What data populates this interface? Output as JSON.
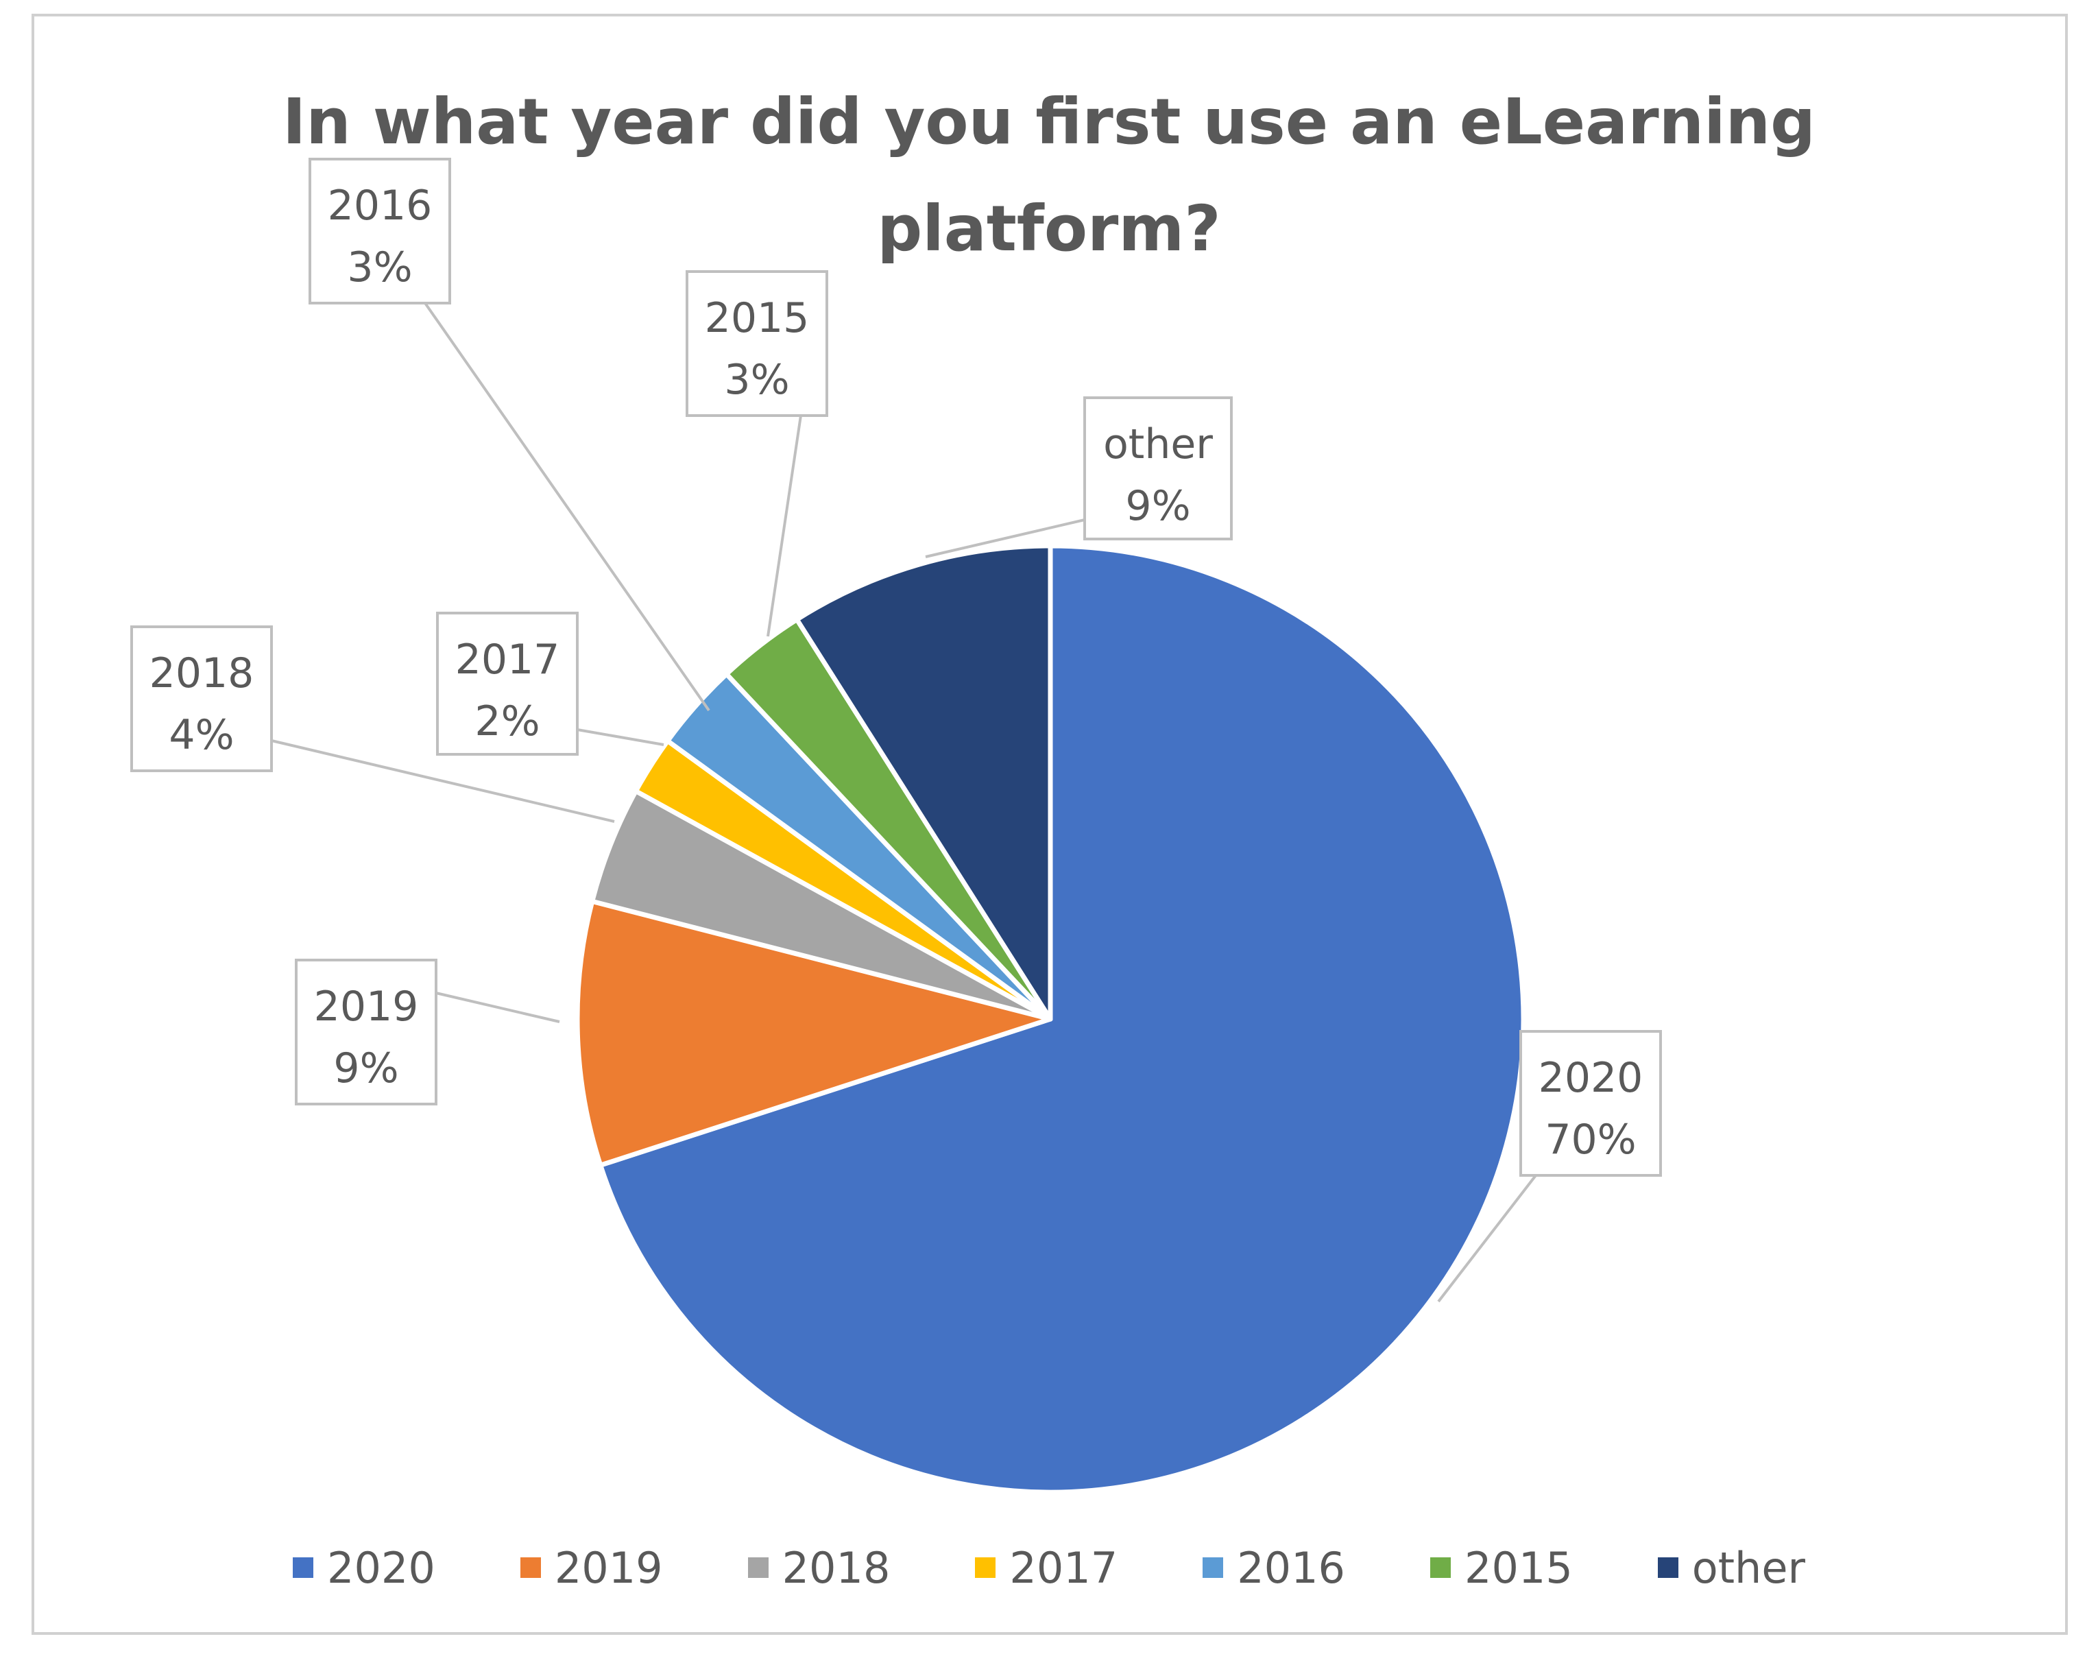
{
  "chart_data": {
    "type": "pie",
    "title": "In what year did you first use an eLearning\nplatform?",
    "categories": [
      "2020",
      "2019",
      "2018",
      "2017",
      "2016",
      "2015",
      "other"
    ],
    "values": [
      70,
      9,
      4,
      2,
      3,
      3,
      9
    ],
    "value_labels": [
      "70%",
      "9%",
      "4%",
      "2%",
      "3%",
      "3%",
      "9%"
    ],
    "colors": [
      "#4472C4",
      "#ED7D31",
      "#A5A5A5",
      "#FFC000",
      "#5B9BD5",
      "#70AD47",
      "#264478"
    ],
    "start_angle": "12 o'clock",
    "direction": "clockwise",
    "data_labels": "category and percentage in callout boxes",
    "legend": "bottom"
  }
}
